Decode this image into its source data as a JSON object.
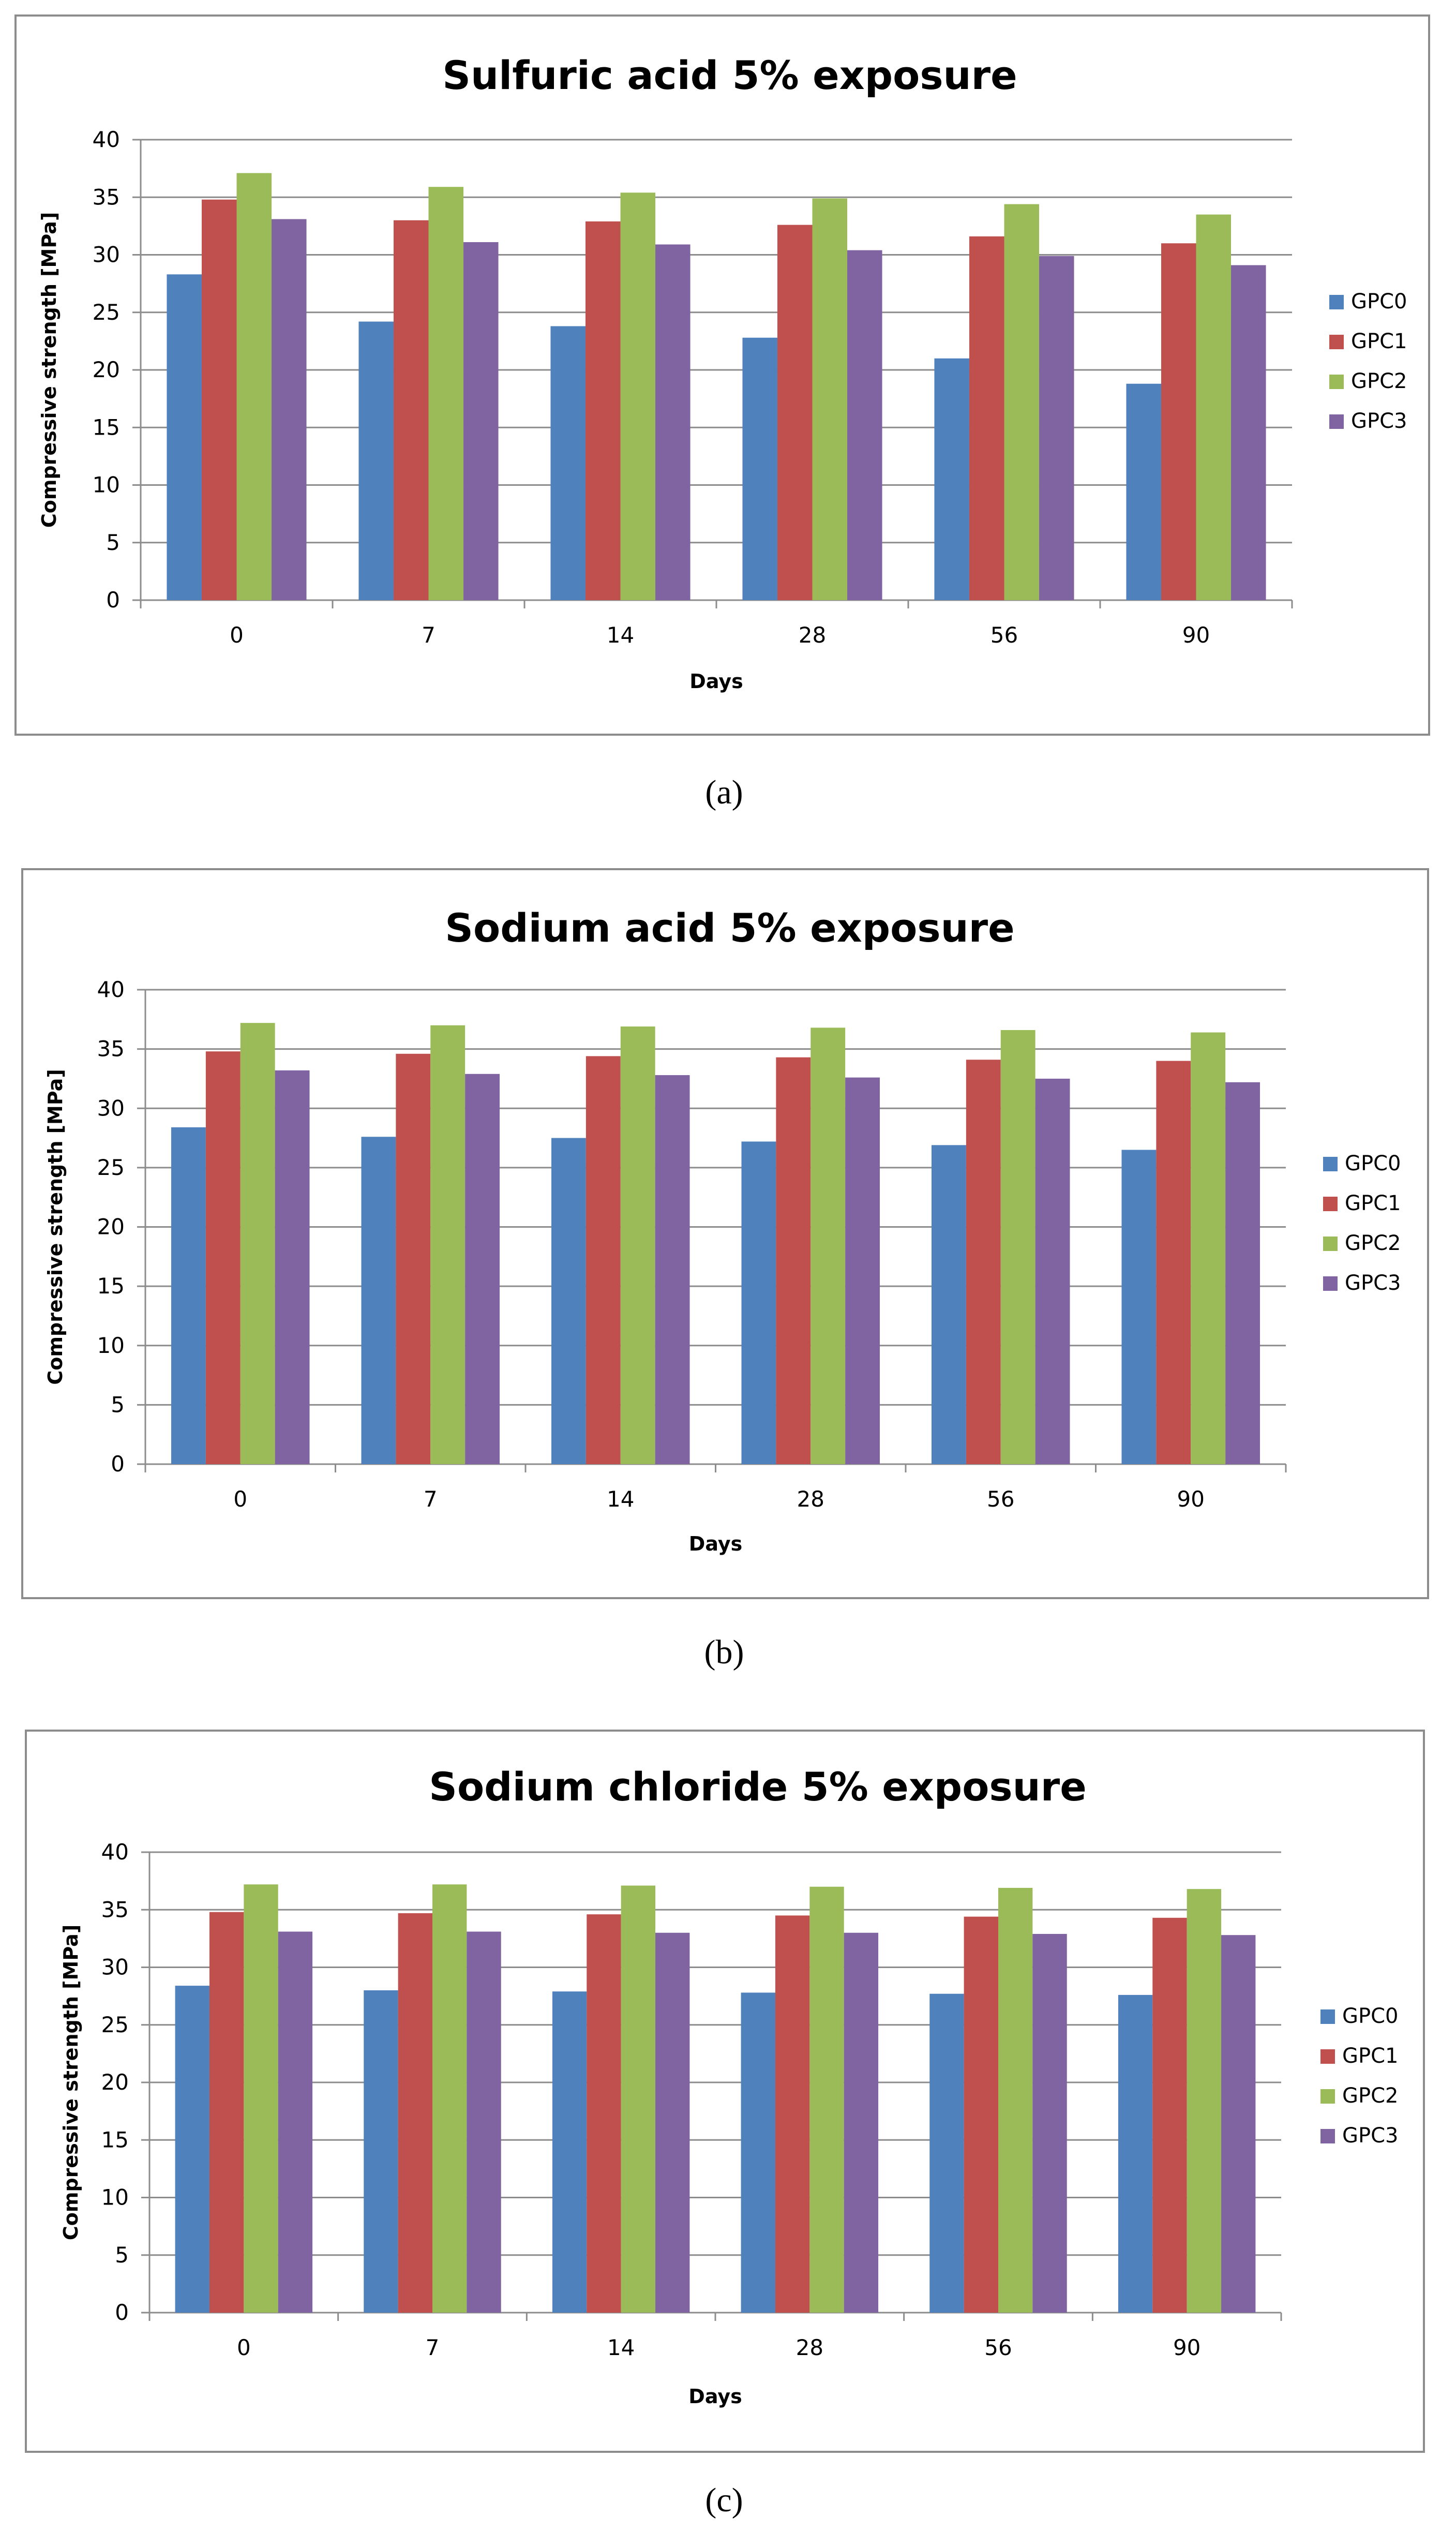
{
  "chart_data": [
    {
      "type": "bar",
      "title": "Sulfuric acid 5% exposure",
      "xlabel": "Days",
      "ylabel": "Compressive strength [MPa]",
      "ylim": [
        0,
        40
      ],
      "yticks": [
        0,
        5,
        10,
        15,
        20,
        25,
        30,
        35,
        40
      ],
      "categories": [
        "0",
        "7",
        "14",
        "28",
        "56",
        "90"
      ],
      "legend_position": "right",
      "series": [
        {
          "name": "GPC0",
          "color": "#4F81BD",
          "values": [
            28.3,
            24.2,
            23.8,
            22.8,
            21.0,
            18.8
          ]
        },
        {
          "name": "GPC1",
          "color": "#C0504D",
          "values": [
            34.8,
            33.0,
            32.9,
            32.6,
            31.6,
            31.0
          ]
        },
        {
          "name": "GPC2",
          "color": "#9BBB59",
          "values": [
            37.1,
            35.9,
            35.4,
            34.9,
            34.4,
            33.5
          ]
        },
        {
          "name": "GPC3",
          "color": "#8064A2",
          "values": [
            33.1,
            31.1,
            30.9,
            30.4,
            29.9,
            29.1
          ]
        }
      ],
      "caption": "(a)"
    },
    {
      "type": "bar",
      "title": "Sodium acid 5% exposure",
      "xlabel": "Days",
      "ylabel": "Compressive strength [MPa]",
      "ylim": [
        0,
        40
      ],
      "yticks": [
        0,
        5,
        10,
        15,
        20,
        25,
        30,
        35,
        40
      ],
      "categories": [
        "0",
        "7",
        "14",
        "28",
        "56",
        "90"
      ],
      "legend_position": "right",
      "series": [
        {
          "name": "GPC0",
          "color": "#4F81BD",
          "values": [
            28.4,
            27.6,
            27.5,
            27.2,
            26.9,
            26.5
          ]
        },
        {
          "name": "GPC1",
          "color": "#C0504D",
          "values": [
            34.8,
            34.6,
            34.4,
            34.3,
            34.1,
            34.0
          ]
        },
        {
          "name": "GPC2",
          "color": "#9BBB59",
          "values": [
            37.2,
            37.0,
            36.9,
            36.8,
            36.6,
            36.4
          ]
        },
        {
          "name": "GPC3",
          "color": "#8064A2",
          "values": [
            33.2,
            32.9,
            32.8,
            32.6,
            32.5,
            32.2
          ]
        }
      ],
      "caption": "(b)"
    },
    {
      "type": "bar",
      "title": "Sodium chloride 5% exposure",
      "xlabel": "Days",
      "ylabel": "Compressive strength [MPa]",
      "ylim": [
        0,
        40
      ],
      "yticks": [
        0,
        5,
        10,
        15,
        20,
        25,
        30,
        35,
        40
      ],
      "categories": [
        "0",
        "7",
        "14",
        "28",
        "56",
        "90"
      ],
      "legend_position": "right",
      "series": [
        {
          "name": "GPC0",
          "color": "#4F81BD",
          "values": [
            28.4,
            28.0,
            27.9,
            27.8,
            27.7,
            27.6
          ]
        },
        {
          "name": "GPC1",
          "color": "#C0504D",
          "values": [
            34.8,
            34.7,
            34.6,
            34.5,
            34.4,
            34.3
          ]
        },
        {
          "name": "GPC2",
          "color": "#9BBB59",
          "values": [
            37.2,
            37.2,
            37.1,
            37.0,
            36.9,
            36.8
          ]
        },
        {
          "name": "GPC3",
          "color": "#8064A2",
          "values": [
            33.1,
            33.1,
            33.0,
            33.0,
            32.9,
            32.8
          ]
        }
      ],
      "caption": "(c)"
    }
  ]
}
